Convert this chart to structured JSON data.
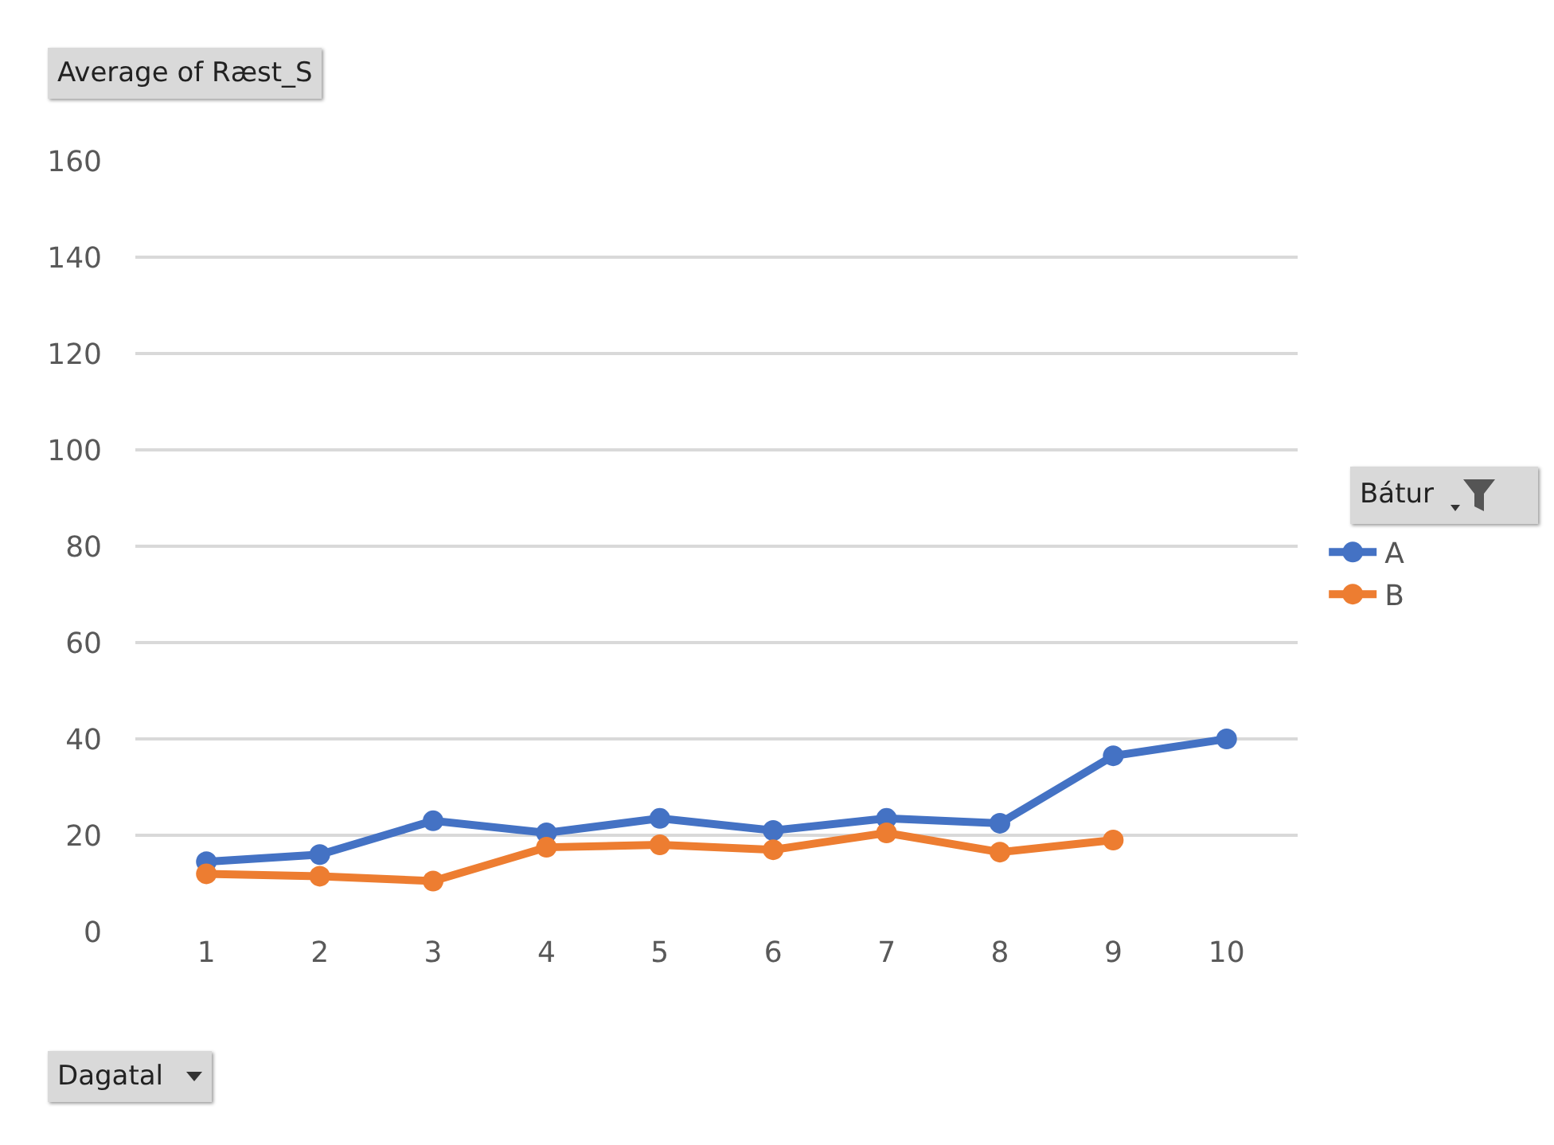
{
  "chart_data": {
    "type": "line",
    "title": "Average of Ræst_S",
    "xlabel": "Dagatal",
    "legend_title": "Bátur",
    "categories": [
      "1",
      "2",
      "3",
      "4",
      "5",
      "6",
      "7",
      "8",
      "9",
      "10"
    ],
    "series": [
      {
        "name": "A",
        "color": "#4472c4",
        "values": [
          14.5,
          16,
          23,
          20.5,
          23.5,
          21,
          23.5,
          22.5,
          36.5,
          40
        ]
      },
      {
        "name": "B",
        "color": "#ed7d31",
        "values": [
          12,
          11.5,
          10.5,
          17.5,
          18,
          17,
          20.5,
          16.5,
          19,
          null
        ]
      }
    ],
    "ylim": [
      0,
      160
    ],
    "yticks": [
      0,
      20,
      40,
      60,
      80,
      100,
      120,
      140,
      160
    ],
    "grid": "y",
    "legend": "right",
    "marker": "circle",
    "line_style": "solid"
  }
}
